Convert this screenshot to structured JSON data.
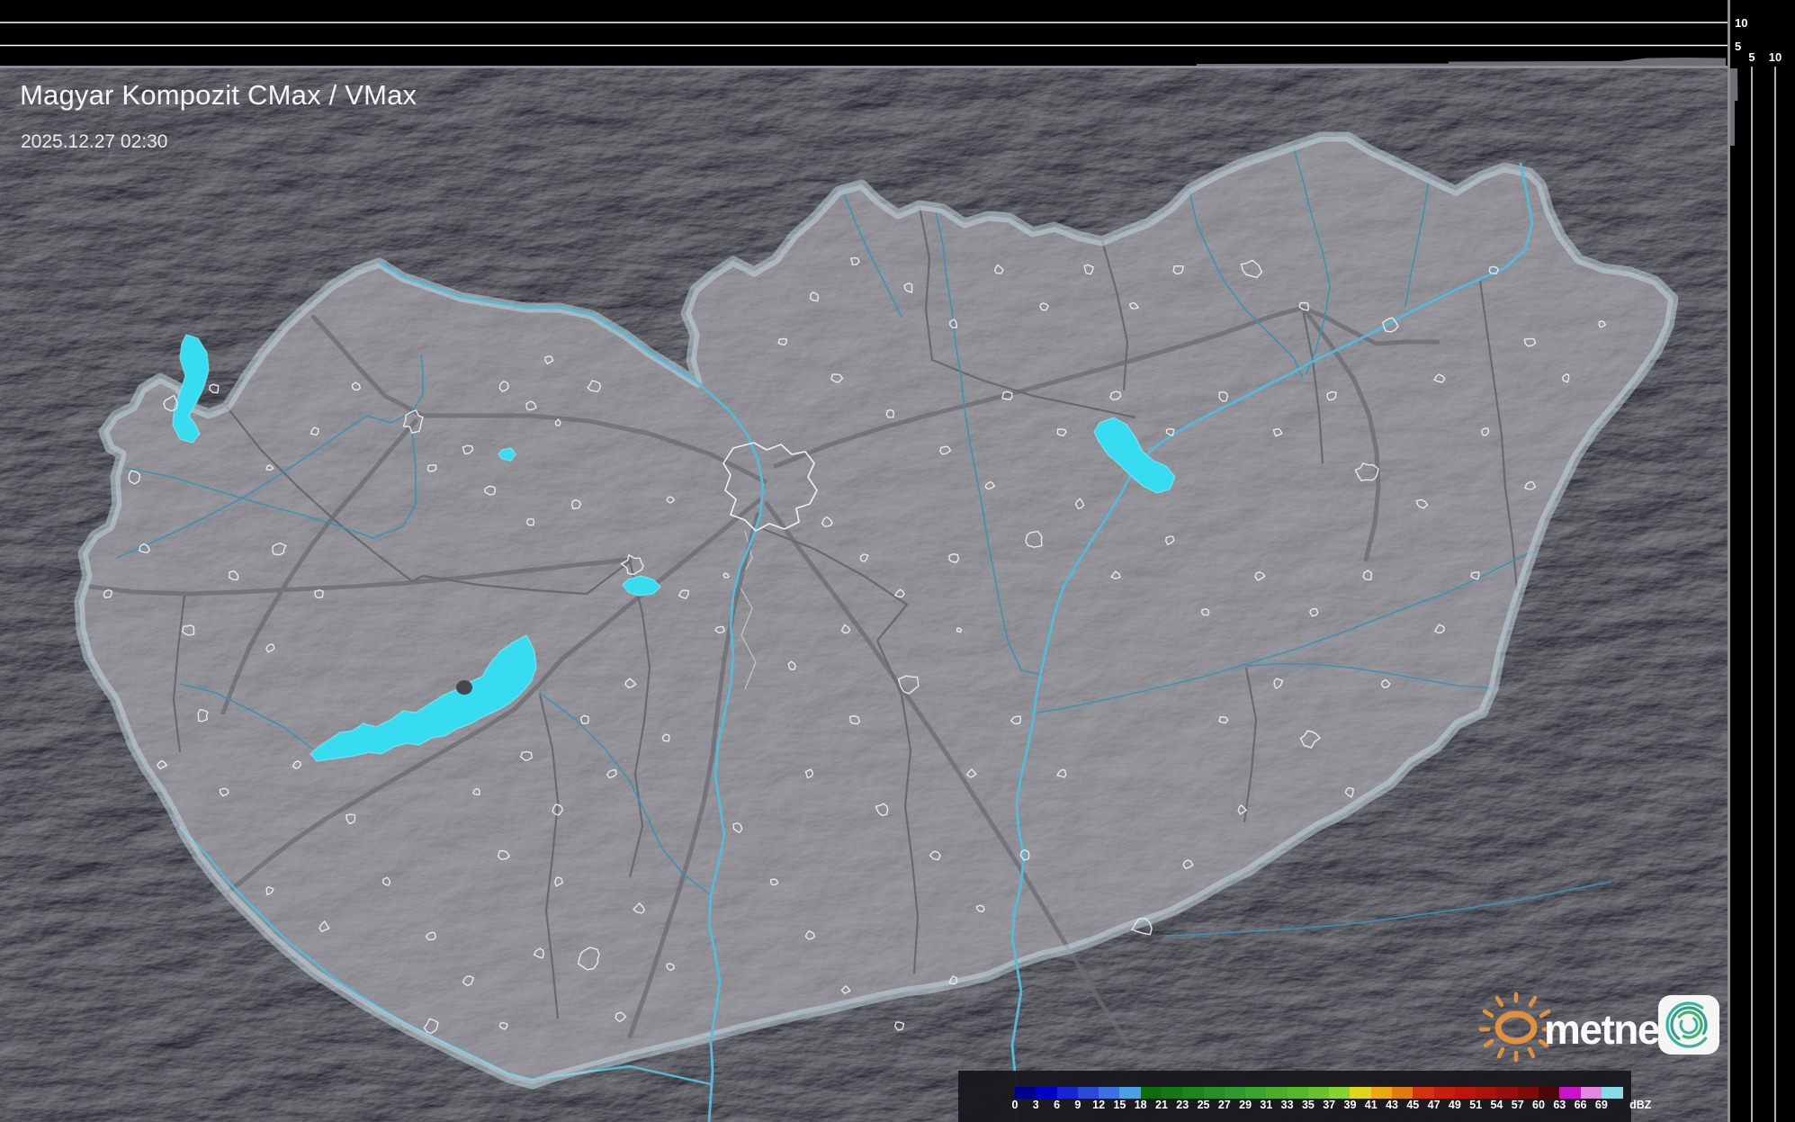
{
  "header": {
    "title": "Magyar Kompozit CMax / VMax",
    "timestamp": "2025.12.27 02:30"
  },
  "profile_axes": {
    "top_axis_labels": [
      "10",
      "5"
    ],
    "right_axis_labels": [
      "5",
      "10"
    ]
  },
  "colorbar": {
    "unit": "dBZ",
    "ticks": [
      "0",
      "3",
      "6",
      "9",
      "12",
      "15",
      "18",
      "21",
      "23",
      "25",
      "27",
      "29",
      "31",
      "33",
      "35",
      "37",
      "39",
      "41",
      "43",
      "45",
      "47",
      "49",
      "51",
      "54",
      "57",
      "60",
      "63",
      "66",
      "69"
    ],
    "colors": [
      "#00008e",
      "#0000c6",
      "#1823d6",
      "#2a49d8",
      "#3a70e0",
      "#49a0e2",
      "#0e6c0e",
      "#157815",
      "#1d841d",
      "#258f25",
      "#2e992e",
      "#38a32d",
      "#47ad2b",
      "#56b72a",
      "#69c22c",
      "#85d231",
      "#e0d51e",
      "#eca714",
      "#e07b10",
      "#d2330e",
      "#c6200c",
      "#bc160c",
      "#aa120e",
      "#970e0e",
      "#7f0b0b",
      "#4f0606",
      "#c913c9",
      "#e387e3",
      "#86dbe4"
    ]
  },
  "logo": {
    "text": "metnet"
  },
  "map_colors": {
    "lake": "#38dcf0",
    "river_major": "#55bada",
    "river_minor": "#3e92b6",
    "country_border": "#95959a",
    "road": "#6b6b71",
    "city_outline": "#e8e8ea"
  }
}
